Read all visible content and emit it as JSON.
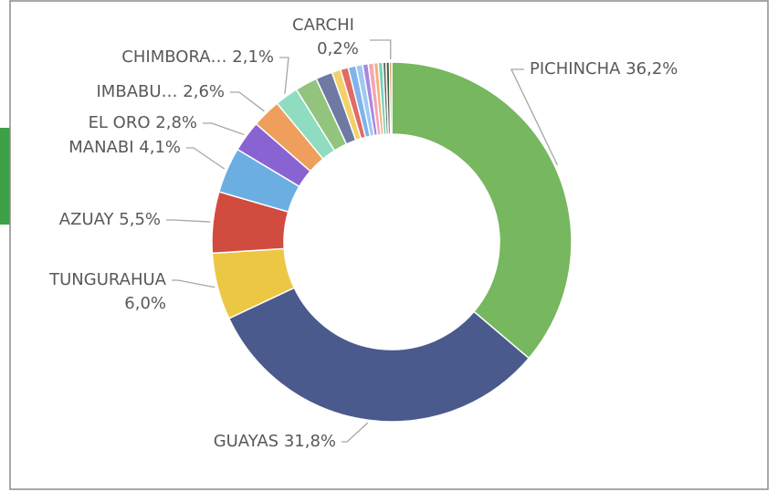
{
  "chart_data": {
    "type": "donut",
    "categories": [
      "PICHINCHA",
      "GUAYAS",
      "TUNGURAHUA",
      "AZUAY",
      "MANABI",
      "EL ORO",
      "IMBABU…",
      "CHIMBORA…",
      null,
      null,
      null,
      null,
      null,
      null,
      null,
      null,
      null,
      null,
      null,
      null,
      "CARCHI"
    ],
    "values": [
      36.2,
      31.8,
      6.0,
      5.5,
      4.1,
      2.8,
      2.6,
      2.1,
      2.0,
      1.5,
      0.8,
      0.7,
      0.7,
      0.6,
      0.5,
      0.5,
      0.4,
      0.4,
      0.3,
      0.3,
      0.2
    ],
    "value_labels": [
      "36,2%",
      "31,8%",
      "6,0%",
      "5,5%",
      "4,1%",
      "2,8%",
      "2,6%",
      "2,1%",
      null,
      null,
      null,
      null,
      null,
      null,
      null,
      null,
      null,
      null,
      null,
      null,
      "0,2%"
    ],
    "colors": [
      "#76b75f",
      "#4a5a8c",
      "#ecc744",
      "#d24b3f",
      "#6aaee2",
      "#8a63d2",
      "#ef9e5c",
      "#8fdcc0",
      "#93c47d",
      "#6e7aa3",
      "#f2d06b",
      "#e06c63",
      "#7fb4ec",
      "#9fc9f2",
      "#a788e0",
      "#f4a6b9",
      "#f3b27a",
      "#7ccfb7",
      "#6b6b6b",
      "#3f5f3f",
      "#c0782e"
    ]
  }
}
